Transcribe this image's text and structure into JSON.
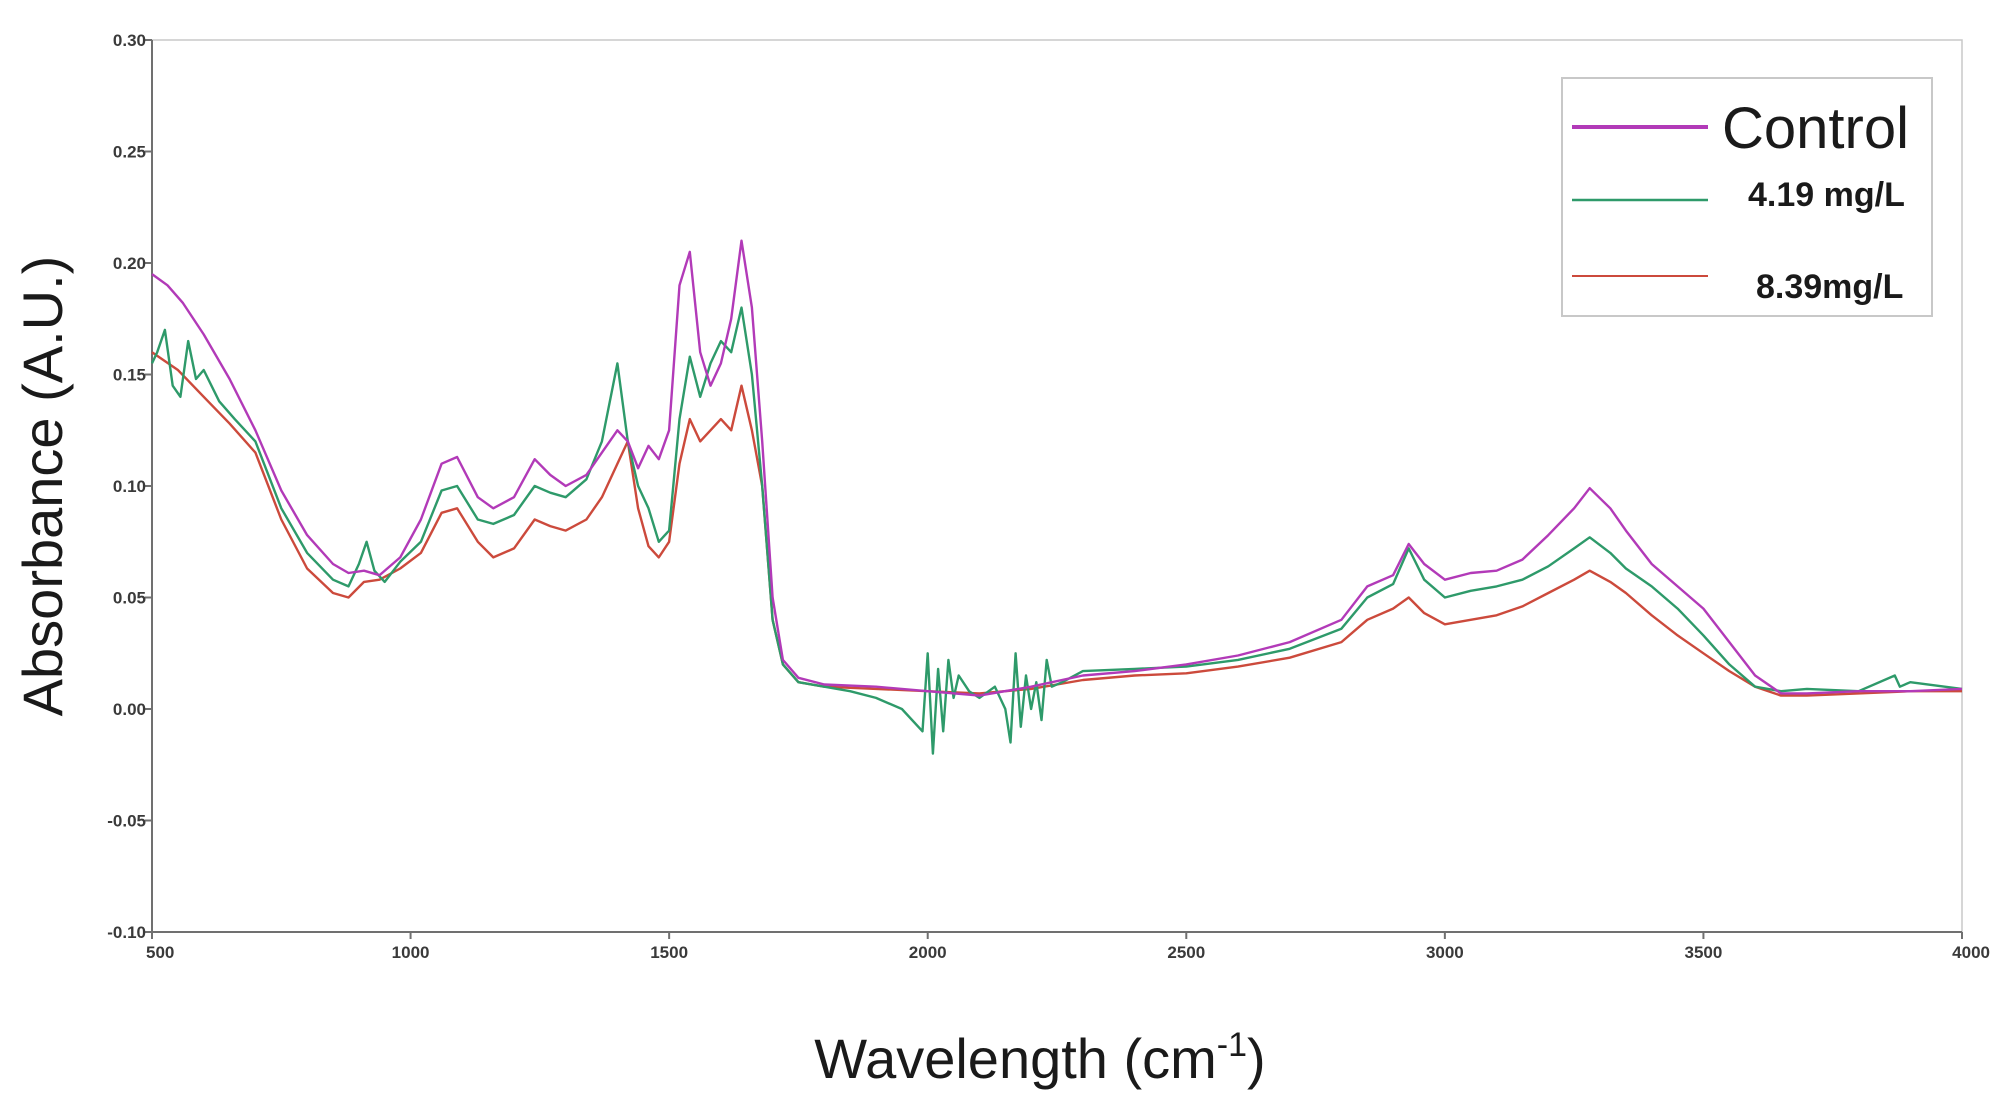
{
  "chart_data": {
    "type": "line",
    "title": "",
    "xlabel": "Wavelength (cm",
    "xlabel_superscript": "-1",
    "xlabel_close": ")",
    "ylabel": "Absorbance (A.U.)",
    "xlim": [
      500,
      4000
    ],
    "ylim": [
      -0.1,
      0.3
    ],
    "xticks": [
      500,
      1000,
      1500,
      2000,
      2500,
      3000,
      3500,
      4000
    ],
    "xtick_labels": [
      "500",
      "1000",
      "1500",
      "2000",
      "2500",
      "3000",
      "3500",
      "4000"
    ],
    "yticks": [
      -0.1,
      -0.05,
      0.0,
      0.05,
      0.1,
      0.15,
      0.2,
      0.25,
      0.3
    ],
    "ytick_labels": [
      "-0.10",
      "-0.05",
      "0.00",
      "0.05",
      "0.10",
      "0.15",
      "0.20",
      "0.25",
      "0.30"
    ],
    "grid": false,
    "legend_position": "top-right",
    "series": [
      {
        "name": "Control",
        "color": "#b23ab8",
        "x": [
          500,
          530,
          560,
          600,
          650,
          700,
          750,
          800,
          850,
          880,
          910,
          940,
          980,
          1020,
          1060,
          1090,
          1130,
          1160,
          1200,
          1240,
          1270,
          1300,
          1340,
          1370,
          1400,
          1420,
          1440,
          1460,
          1480,
          1500,
          1520,
          1540,
          1560,
          1580,
          1600,
          1620,
          1640,
          1660,
          1680,
          1700,
          1720,
          1750,
          1800,
          1900,
          2000,
          2100,
          2200,
          2300,
          2400,
          2500,
          2600,
          2700,
          2800,
          2850,
          2900,
          2930,
          2960,
          3000,
          3050,
          3100,
          3150,
          3200,
          3250,
          3280,
          3320,
          3350,
          3400,
          3450,
          3500,
          3550,
          3600,
          3650,
          3700,
          3800,
          3900,
          4000
        ],
        "values": [
          0.195,
          0.19,
          0.182,
          0.168,
          0.148,
          0.125,
          0.098,
          0.078,
          0.065,
          0.061,
          0.062,
          0.06,
          0.068,
          0.085,
          0.11,
          0.113,
          0.095,
          0.09,
          0.095,
          0.112,
          0.105,
          0.1,
          0.105,
          0.115,
          0.125,
          0.12,
          0.108,
          0.118,
          0.112,
          0.125,
          0.19,
          0.205,
          0.16,
          0.145,
          0.155,
          0.175,
          0.21,
          0.18,
          0.12,
          0.05,
          0.022,
          0.014,
          0.011,
          0.01,
          0.008,
          0.006,
          0.01,
          0.015,
          0.017,
          0.02,
          0.024,
          0.03,
          0.04,
          0.055,
          0.06,
          0.074,
          0.065,
          0.058,
          0.061,
          0.062,
          0.067,
          0.078,
          0.09,
          0.099,
          0.09,
          0.08,
          0.065,
          0.055,
          0.045,
          0.03,
          0.015,
          0.007,
          0.007,
          0.008,
          0.008,
          0.009
        ]
      },
      {
        "name": "4.19 mg/L",
        "color": "#2e9a6a",
        "x": [
          500,
          510,
          525,
          540,
          555,
          570,
          585,
          600,
          630,
          660,
          700,
          750,
          800,
          850,
          880,
          900,
          915,
          930,
          950,
          980,
          1020,
          1060,
          1090,
          1130,
          1160,
          1200,
          1240,
          1270,
          1300,
          1340,
          1370,
          1400,
          1420,
          1440,
          1460,
          1480,
          1500,
          1520,
          1540,
          1560,
          1580,
          1600,
          1620,
          1640,
          1660,
          1680,
          1700,
          1720,
          1750,
          1800,
          1850,
          1900,
          1950,
          1990,
          2000,
          2010,
          2020,
          2030,
          2040,
          2050,
          2060,
          2080,
          2100,
          2130,
          2150,
          2160,
          2170,
          2180,
          2190,
          2200,
          2210,
          2220,
          2230,
          2240,
          2260,
          2300,
          2400,
          2500,
          2600,
          2700,
          2800,
          2850,
          2900,
          2930,
          2960,
          3000,
          3050,
          3100,
          3150,
          3200,
          3250,
          3280,
          3320,
          3350,
          3400,
          3450,
          3500,
          3550,
          3600,
          3650,
          3700,
          3800,
          3870,
          3880,
          3900,
          4000
        ],
        "values": [
          0.155,
          0.16,
          0.17,
          0.145,
          0.14,
          0.165,
          0.148,
          0.152,
          0.138,
          0.13,
          0.12,
          0.09,
          0.07,
          0.058,
          0.055,
          0.065,
          0.075,
          0.062,
          0.057,
          0.066,
          0.075,
          0.098,
          0.1,
          0.085,
          0.083,
          0.087,
          0.1,
          0.097,
          0.095,
          0.103,
          0.12,
          0.155,
          0.12,
          0.1,
          0.09,
          0.075,
          0.08,
          0.13,
          0.158,
          0.14,
          0.155,
          0.165,
          0.16,
          0.18,
          0.15,
          0.1,
          0.04,
          0.02,
          0.012,
          0.01,
          0.008,
          0.005,
          0.0,
          -0.01,
          0.025,
          -0.02,
          0.018,
          -0.01,
          0.022,
          0.005,
          0.015,
          0.008,
          0.005,
          0.01,
          0.0,
          -0.015,
          0.025,
          -0.008,
          0.015,
          0.0,
          0.012,
          -0.005,
          0.022,
          0.01,
          0.012,
          0.017,
          0.018,
          0.019,
          0.022,
          0.027,
          0.036,
          0.05,
          0.056,
          0.072,
          0.058,
          0.05,
          0.053,
          0.055,
          0.058,
          0.064,
          0.072,
          0.077,
          0.07,
          0.063,
          0.055,
          0.045,
          0.033,
          0.02,
          0.01,
          0.008,
          0.009,
          0.008,
          0.015,
          0.01,
          0.012,
          0.009
        ]
      },
      {
        "name": "8.39mg/L",
        "color": "#cc4a3c",
        "x": [
          500,
          550,
          600,
          650,
          700,
          750,
          800,
          850,
          880,
          910,
          940,
          980,
          1020,
          1060,
          1090,
          1130,
          1160,
          1200,
          1240,
          1270,
          1300,
          1340,
          1370,
          1400,
          1420,
          1440,
          1460,
          1480,
          1500,
          1520,
          1540,
          1560,
          1580,
          1600,
          1620,
          1640,
          1660,
          1680,
          1700,
          1720,
          1750,
          1800,
          1900,
          2000,
          2100,
          2200,
          2300,
          2400,
          2500,
          2600,
          2700,
          2800,
          2850,
          2900,
          2930,
          2960,
          3000,
          3050,
          3100,
          3150,
          3200,
          3250,
          3280,
          3320,
          3350,
          3400,
          3450,
          3500,
          3550,
          3600,
          3650,
          3700,
          3800,
          3900,
          4000
        ],
        "values": [
          0.16,
          0.152,
          0.14,
          0.128,
          0.115,
          0.085,
          0.063,
          0.052,
          0.05,
          0.057,
          0.058,
          0.063,
          0.07,
          0.088,
          0.09,
          0.075,
          0.068,
          0.072,
          0.085,
          0.082,
          0.08,
          0.085,
          0.095,
          0.11,
          0.12,
          0.09,
          0.073,
          0.068,
          0.075,
          0.11,
          0.13,
          0.12,
          0.125,
          0.13,
          0.125,
          0.145,
          0.125,
          0.1,
          0.04,
          0.02,
          0.012,
          0.01,
          0.009,
          0.008,
          0.007,
          0.009,
          0.013,
          0.015,
          0.016,
          0.019,
          0.023,
          0.03,
          0.04,
          0.045,
          0.05,
          0.043,
          0.038,
          0.04,
          0.042,
          0.046,
          0.052,
          0.058,
          0.062,
          0.057,
          0.052,
          0.042,
          0.033,
          0.025,
          0.017,
          0.01,
          0.006,
          0.006,
          0.007,
          0.008,
          0.008
        ]
      }
    ]
  }
}
